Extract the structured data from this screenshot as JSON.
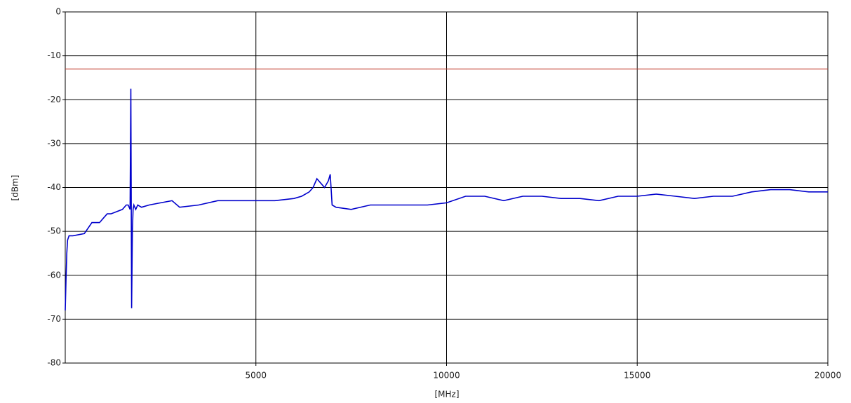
{
  "chart_data": {
    "type": "line",
    "x_label": "[MHz]",
    "y_label": "[dBm]",
    "x": [
      0,
      20,
      40,
      60,
      100,
      200,
      500,
      700,
      800,
      900,
      1000,
      1100,
      1200,
      1500,
      1600,
      1650,
      1700,
      1720,
      1740,
      1760,
      1780,
      1800,
      1850,
      1900,
      2000,
      2200,
      2500,
      2800,
      3000,
      3500,
      4000,
      4500,
      5000,
      5500,
      6000,
      6200,
      6400,
      6500,
      6600,
      6700,
      6800,
      6900,
      6950,
      7000,
      7100,
      7500,
      8000,
      8500,
      9000,
      9500,
      10000,
      10500,
      11000,
      11500,
      12000,
      12500,
      13000,
      13500,
      14000,
      14500,
      15000,
      15500,
      16000,
      16500,
      17000,
      17500,
      18000,
      18500,
      19000,
      19500,
      20000
    ],
    "values": [
      -68,
      -61,
      -55,
      -52,
      -51,
      -51,
      -50.5,
      -48,
      -48,
      -48,
      -47,
      -46,
      -46,
      -45,
      -44,
      -44,
      -45,
      -17.5,
      -67.5,
      -50,
      -45,
      -44,
      -45,
      -44,
      -44.5,
      -44,
      -43.5,
      -43,
      -44.5,
      -44,
      -43,
      -43,
      -43,
      -43,
      -42.5,
      -42,
      -41,
      -40,
      -38,
      -39,
      -40,
      -38.5,
      -37,
      -44,
      -44.5,
      -45,
      -44,
      -44,
      -44,
      -44,
      -43.5,
      -42,
      -42,
      -43,
      -42,
      -42,
      -42.5,
      -42.5,
      -43,
      -42,
      -42,
      -41.5,
      -42,
      -42.5,
      -42,
      -42,
      -41,
      -40.5,
      -40.5,
      -41,
      -41
    ],
    "color": "#0000cc",
    "limit_line": {
      "value": -13,
      "color": "#c0392b"
    },
    "xlim": [
      0,
      20000
    ],
    "xticks": [
      5000,
      10000,
      15000,
      20000
    ],
    "ylim": [
      -80,
      0
    ],
    "yticks": [
      0,
      -10,
      -20,
      -30,
      -40,
      -50,
      -60,
      -70,
      -80
    ],
    "grid": true
  }
}
